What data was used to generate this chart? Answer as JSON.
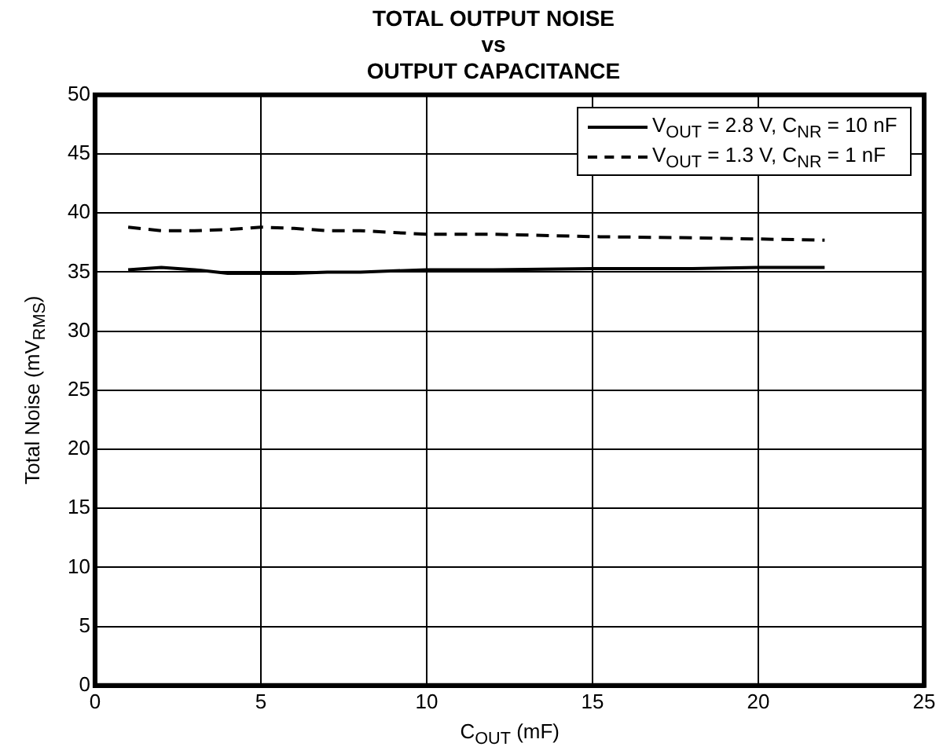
{
  "chart_data": {
    "type": "line",
    "title": "TOTAL OUTPUT NOISE\nvs\nOUTPUT CAPACITANCE",
    "xlabel": "C$_{OUT}$ (mF)",
    "ylabel": "Total Noise (mV$_{RMS}$)",
    "x": [
      1,
      2,
      3,
      4,
      5,
      6,
      7,
      8,
      10,
      12,
      15,
      18,
      20,
      22
    ],
    "series": [
      {
        "name": "V$_{OUT}$ = 2.8 V, C$_{NR}$ = 10 nF",
        "color": "#000000",
        "line_style": "solid",
        "values": [
          35.2,
          35.4,
          35.2,
          34.9,
          34.9,
          34.9,
          35.0,
          35.0,
          35.2,
          35.2,
          35.3,
          35.3,
          35.4,
          35.4
        ]
      },
      {
        "name": "V$_{OUT}$ = 1.3 V, C$_{NR}$ = 1 nF",
        "color": "#000000",
        "line_style": "dashed",
        "values": [
          38.8,
          38.5,
          38.5,
          38.6,
          38.8,
          38.7,
          38.5,
          38.5,
          38.2,
          38.2,
          38.0,
          37.9,
          37.8,
          37.7
        ]
      }
    ],
    "xlim": [
      0,
      25
    ],
    "xticks": [
      0,
      5,
      10,
      15,
      20,
      25
    ],
    "ylim": [
      0,
      50
    ],
    "yticks": [
      0,
      5,
      10,
      15,
      20,
      25,
      30,
      35,
      40,
      45,
      50
    ],
    "grid": true,
    "legend": "top right",
    "marker": "none"
  }
}
